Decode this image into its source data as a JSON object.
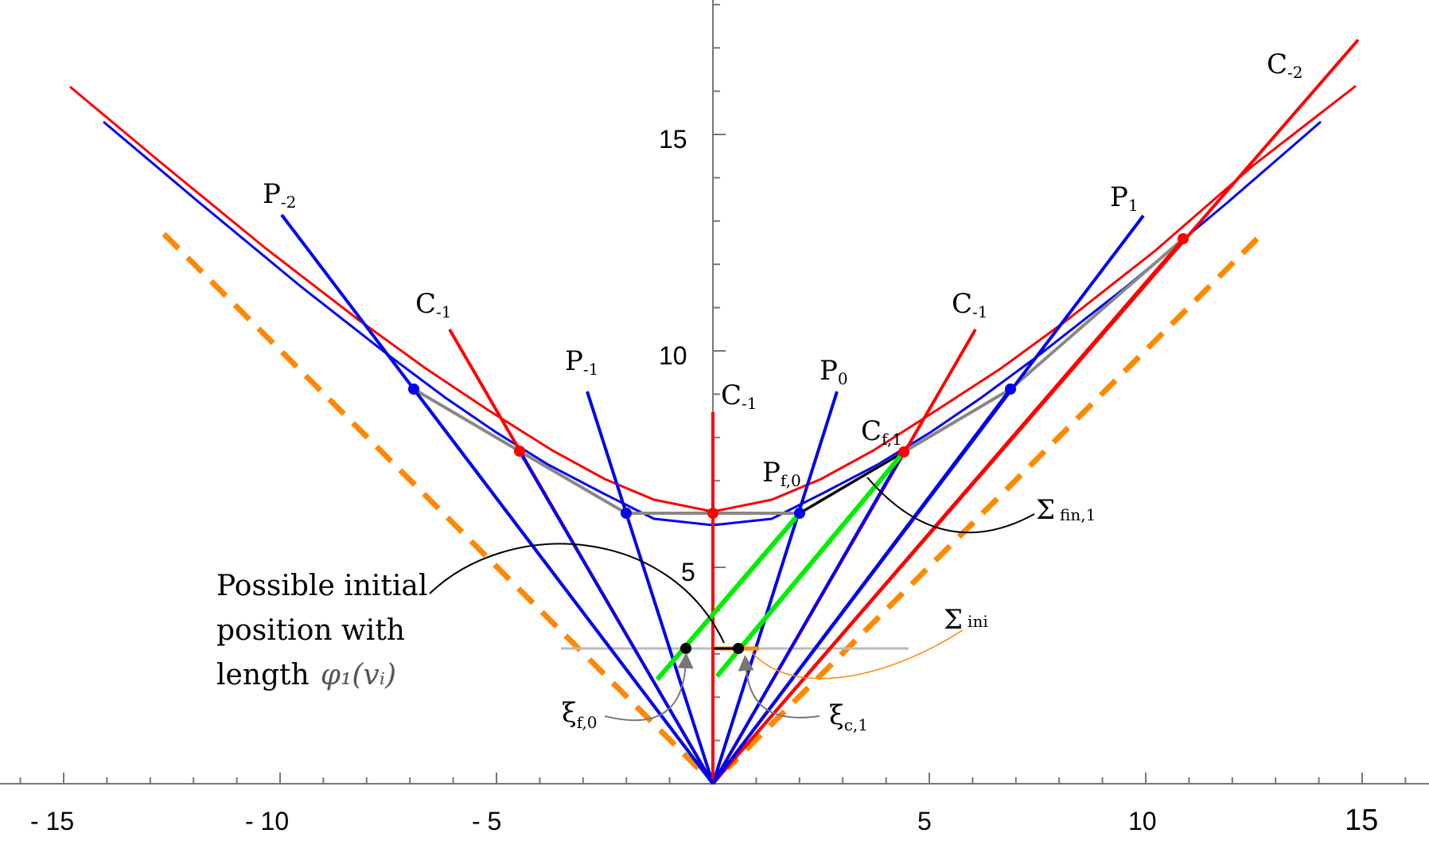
{
  "figure": {
    "axes": {
      "x_tick_labels": [
        "- 15",
        "- 10",
        "- 5",
        "5",
        "10",
        "15"
      ],
      "y_tick_labels": [
        "5",
        "10",
        "15"
      ]
    },
    "labels": {
      "p_minus2": {
        "main": "P",
        "sub": "-2"
      },
      "p_minus1": {
        "main": "P",
        "sub": "-1"
      },
      "p_0": {
        "main": "P",
        "sub": "0"
      },
      "p_1": {
        "main": "P",
        "sub": "1"
      },
      "p_f0": {
        "main": "P",
        "sub": "f,0"
      },
      "c_minus1_left": {
        "main": "C",
        "sub": "-1"
      },
      "c_minus1_center": {
        "main": "C",
        "sub": "-1"
      },
      "c_minus1_right": {
        "main": "C",
        "sub": "-1"
      },
      "c_minus2": {
        "main": "C",
        "sub": "-2"
      },
      "c_f1": {
        "main": "C",
        "sub": "f,1"
      },
      "sigma_fin1": {
        "main": "Σ",
        "sub": "fin,1"
      },
      "sigma_ini": {
        "main": "Σ",
        "sub": "ini"
      },
      "xi_f0": {
        "main": "ξ",
        "sub": "f,0"
      },
      "xi_c1": {
        "main": "ξ",
        "sub": "c,1"
      }
    },
    "annotation": {
      "line1": "Possible initial",
      "line2": "position with",
      "line3_text": "length",
      "line3_math": "φ₁(vᵢ)"
    },
    "colors": {
      "red": "#ff0000",
      "blue": "#0000ee",
      "green": "#00ee00",
      "orange": "#ff8800",
      "gray": "#888888",
      "light_gray": "#bbbbbb",
      "black": "#000000"
    }
  }
}
